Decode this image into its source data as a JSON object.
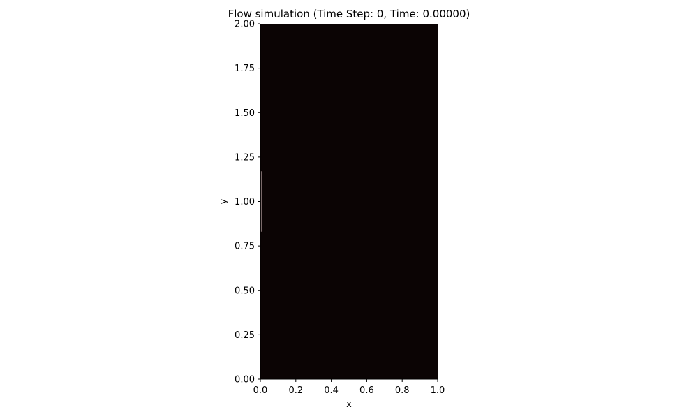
{
  "chart_data": {
    "type": "heatmap",
    "title": "Flow simulation (Time Step: 0, Time: 0.00000)",
    "xlabel": "x",
    "ylabel": "y",
    "xlim": [
      0.0,
      1.0
    ],
    "ylim": [
      0.0,
      2.0
    ],
    "xticks": [
      0.0,
      0.2,
      0.4,
      0.6,
      0.8,
      1.0
    ],
    "xtick_labels": [
      "0.0",
      "0.2",
      "0.4",
      "0.6",
      "0.8",
      "1.0"
    ],
    "yticks": [
      0.0,
      0.25,
      0.5,
      0.75,
      1.0,
      1.25,
      1.5,
      1.75,
      2.0
    ],
    "ytick_labels": [
      "0.00",
      "0.25",
      "0.50",
      "0.75",
      "1.00",
      "1.25",
      "1.50",
      "1.75",
      "2.00"
    ],
    "field_color": "#0b0404",
    "inlet_color": "#7a6a6a",
    "inlet": {
      "x": 0.0,
      "y_min": 0.83,
      "y_max": 1.17
    },
    "grid": false
  }
}
